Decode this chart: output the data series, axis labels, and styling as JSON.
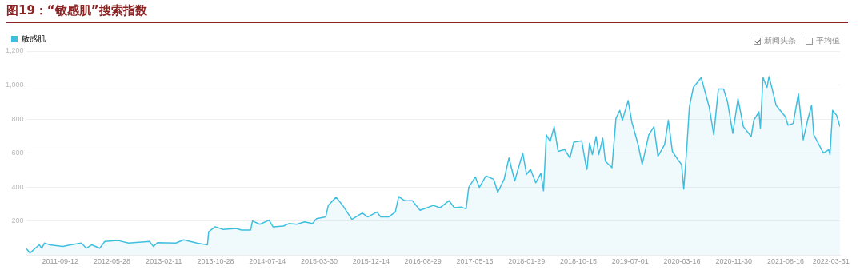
{
  "chart_data": {
    "type": "area",
    "title": "图19：“敏感肌”搜索指数",
    "annotations": [
      "新闻头条",
      "平均值"
    ],
    "legend": "top left",
    "grid": "y",
    "xlim": [
      "2011-03-25",
      "2022-05-15"
    ],
    "xticks": [
      "2011-09-12",
      "2012-05-28",
      "2013-02-11",
      "2013-10-28",
      "2014-07-14",
      "2015-03-30",
      "2015-12-14",
      "2016-08-29",
      "2017-05-15",
      "2018-01-29",
      "2018-10-15",
      "2019-07-01",
      "2020-03-16",
      "2020-11-30",
      "2021-08-16",
      "2022-03-31"
    ],
    "ylim": [
      0,
      1200
    ],
    "yticks": [
      200,
      400,
      600,
      800,
      {
        "value": 1000,
        "label": "1,000"
      },
      {
        "value": 1200,
        "label": "1,200"
      }
    ],
    "series": [
      {
        "name": "敏感肌",
        "color": "#3fbfe0",
        "x": [
          "2011-03-25",
          "2011-04-14",
          "2011-05-30",
          "2011-06-12",
          "2011-06-25",
          "2011-07-22",
          "2011-09-25",
          "2011-11-03",
          "2011-12-26",
          "2012-01-21",
          "2012-02-17",
          "2012-03-27",
          "2012-04-22",
          "2012-06-27",
          "2012-08-19",
          "2012-12-01",
          "2012-12-21",
          "2013-01-10",
          "2013-04-12",
          "2013-05-21",
          "2013-07-26",
          "2013-09-17",
          "2013-09-23",
          "2013-10-26",
          "2013-12-04",
          "2014-02-08",
          "2014-03-06",
          "2014-04-21",
          "2014-04-30",
          "2014-06-06",
          "2014-07-22",
          "2014-08-11",
          "2014-10-02",
          "2014-10-29",
          "2014-12-07",
          "2015-01-15",
          "2015-02-24",
          "2015-03-16",
          "2015-05-01",
          "2015-05-14",
          "2015-06-22",
          "2015-07-25",
          "2015-09-09",
          "2015-10-31",
          "2015-11-27",
          "2016-01-12",
          "2016-01-31",
          "2016-03-11",
          "2016-04-13",
          "2016-04-30",
          "2016-05-29",
          "2016-07-07",
          "2016-08-15",
          "2016-10-20",
          "2016-11-22",
          "2017-01-07",
          "2017-02-02",
          "2017-03-07",
          "2017-04-02",
          "2017-04-15",
          "2017-05-18",
          "2017-06-07",
          "2017-07-10",
          "2017-08-18",
          "2017-09-07",
          "2017-10-09",
          "2017-11-02",
          "2017-12-01",
          "2018-01-10",
          "2018-01-29",
          "2018-02-18",
          "2018-03-16",
          "2018-04-11",
          "2018-04-24",
          "2018-05-08",
          "2018-05-27",
          "2018-06-16",
          "2018-07-06",
          "2018-08-08",
          "2018-09-03",
          "2018-09-22",
          "2018-11-01",
          "2018-11-21",
          "2018-11-27",
          "2018-12-10",
          "2018-12-24",
          "2019-01-12",
          "2019-01-25",
          "2019-02-14",
          "2019-02-27",
          "2019-04-01",
          "2019-04-21",
          "2019-05-10",
          "2019-05-23",
          "2019-06-21",
          "2019-07-09",
          "2019-08-10",
          "2019-08-30",
          "2019-10-02",
          "2019-10-28",
          "2019-11-17",
          "2019-12-20",
          "2020-01-08",
          "2020-01-28",
          "2020-03-01",
          "2020-03-14",
          "2020-03-25",
          "2020-04-09",
          "2020-04-22",
          "2020-05-12",
          "2020-06-20",
          "2020-07-10",
          "2020-07-30",
          "2020-08-22",
          "2020-09-14",
          "2020-10-10",
          "2020-10-30",
          "2020-11-25",
          "2020-12-21",
          "2021-01-17",
          "2021-02-25",
          "2021-03-10",
          "2021-04-05",
          "2021-04-12",
          "2021-04-25",
          "2021-05-15",
          "2021-05-25",
          "2021-06-10",
          "2021-06-30",
          "2021-08-15",
          "2021-08-28",
          "2021-09-23",
          "2021-10-19",
          "2021-11-12",
          "2021-12-04",
          "2021-12-24",
          "2022-01-04",
          "2022-01-26",
          "2022-02-21",
          "2022-03-20",
          "2022-03-26",
          "2022-04-08",
          "2022-04-28",
          "2022-05-15"
        ],
        "values": [
          40,
          12,
          60,
          40,
          70,
          60,
          50,
          60,
          70,
          40,
          60,
          40,
          80,
          85,
          70,
          80,
          50,
          73,
          70,
          89,
          70,
          60,
          137,
          166,
          150,
          156,
          147,
          147,
          200,
          181,
          205,
          166,
          170,
          185,
          181,
          195,
          185,
          214,
          224,
          292,
          340,
          292,
          210,
          247,
          224,
          253,
          224,
          224,
          253,
          344,
          320,
          320,
          263,
          292,
          278,
          320,
          278,
          282,
          272,
          398,
          459,
          398,
          465,
          446,
          369,
          446,
          571,
          436,
          600,
          475,
          504,
          425,
          481,
          378,
          707,
          668,
          755,
          610,
          620,
          571,
          664,
          672,
          533,
          504,
          658,
          591,
          697,
          591,
          687,
          552,
          514,
          803,
          851,
          793,
          909,
          784,
          649,
          533,
          707,
          755,
          581,
          649,
          793,
          610,
          552,
          533,
          388,
          629,
          871,
          986,
          1044,
          958,
          871,
          707,
          977,
          977,
          900,
          716,
          919,
          755,
          697,
          793,
          842,
          745,
          1044,
          986,
          1050,
          977,
          880,
          813,
          764,
          774,
          948,
          678,
          793,
          880,
          707,
          658,
          600,
          620,
          591,
          851,
          822,
          755
        ]
      }
    ]
  }
}
